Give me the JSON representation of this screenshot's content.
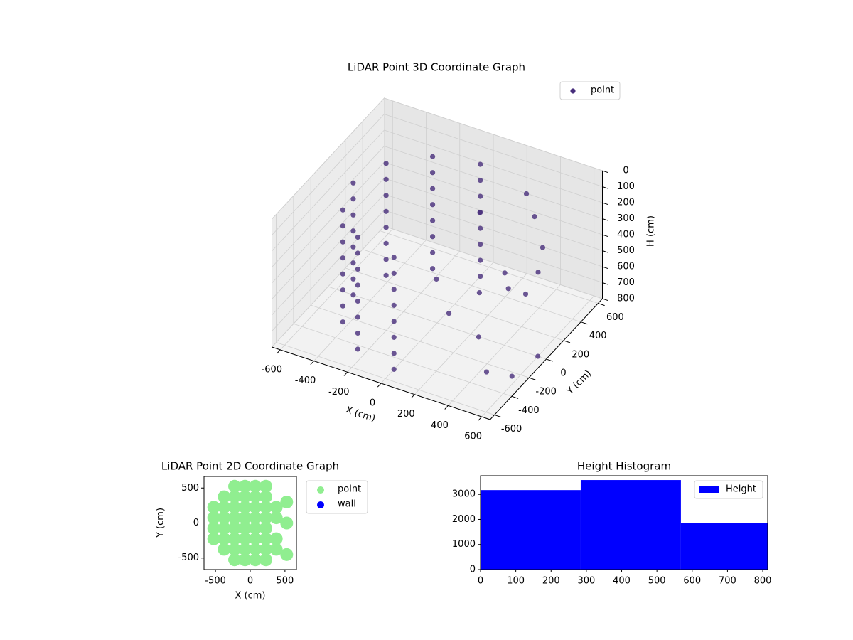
{
  "chart_data": [
    {
      "type": "scatter3d",
      "title": "LiDAR Point 3D Coordinate Graph",
      "xlabel": "X (cm)",
      "ylabel": "Y (cm)",
      "zlabel": "H (cm)",
      "xlim": [
        -650,
        650
      ],
      "ylim": [
        -650,
        650
      ],
      "zlim": [
        0,
        800
      ],
      "z_inverted": true,
      "xticks": [
        -600,
        -400,
        -200,
        0,
        200,
        400,
        600
      ],
      "yticks": [
        -600,
        -400,
        -200,
        0,
        200,
        400,
        600
      ],
      "zticks": [
        0,
        100,
        200,
        300,
        400,
        500,
        600,
        700,
        800
      ],
      "grid": true,
      "legend": "upper right",
      "series": [
        {
          "name": "point",
          "color": "#472d7b",
          "x": [
            0,
            0,
            0,
            0,
            0,
            0,
            0,
            0,
            -250,
            -250,
            -250,
            -250,
            -250,
            -250,
            -250,
            -250,
            -433,
            -433,
            -433,
            -433,
            -433,
            -433,
            -433,
            -433,
            -500,
            -500,
            -500,
            -500,
            -500,
            -500,
            -500,
            -500,
            -433,
            -433,
            -433,
            -433,
            -433,
            -433,
            -433,
            -433,
            -250,
            -250,
            -250,
            -250,
            -250,
            -250,
            -250,
            -250,
            0,
            0,
            0,
            0,
            0,
            0,
            0,
            0,
            300,
            400,
            500,
            550,
            450,
            300,
            200,
            350,
            500,
            600,
            150,
            250,
            100,
            450,
            600
          ],
          "y": [
            500,
            500,
            500,
            500,
            500,
            500,
            500,
            500,
            433,
            433,
            433,
            433,
            433,
            433,
            433,
            433,
            250,
            250,
            250,
            250,
            250,
            250,
            250,
            250,
            0,
            0,
            0,
            0,
            0,
            0,
            0,
            0,
            -250,
            -250,
            -250,
            -250,
            -250,
            -250,
            -250,
            -250,
            -433,
            -433,
            -433,
            -433,
            -433,
            -433,
            -433,
            -433,
            -500,
            -500,
            -500,
            -500,
            -500,
            -500,
            -500,
            -500,
            450,
            350,
            250,
            100,
            -50,
            200,
            100,
            -200,
            -400,
            -300,
            -300,
            -350,
            300,
            150,
            0
          ],
          "z": [
            100,
            200,
            300,
            400,
            500,
            600,
            700,
            800,
            100,
            200,
            300,
            400,
            500,
            600,
            700,
            800,
            100,
            200,
            300,
            400,
            500,
            600,
            700,
            800,
            100,
            200,
            300,
            400,
            500,
            600,
            700,
            800,
            100,
            200,
            300,
            400,
            500,
            600,
            700,
            800,
            100,
            200,
            300,
            400,
            500,
            600,
            700,
            800,
            100,
            200,
            300,
            400,
            500,
            600,
            700,
            800,
            150,
            200,
            300,
            350,
            400,
            500,
            600,
            650,
            700,
            750,
            300,
            450,
            250,
            550,
            800
          ]
        }
      ]
    },
    {
      "type": "scatter",
      "title": "LiDAR Point 2D Coordinate Graph",
      "xlabel": "X (cm)",
      "ylabel": "Y (cm)",
      "xlim": [
        -665,
        665
      ],
      "ylim": [
        -665,
        665
      ],
      "xticks": [
        -500,
        0,
        500
      ],
      "yticks": [
        -500,
        0,
        500
      ],
      "legend": "outside right",
      "series": [
        {
          "name": "point",
          "color": "#90ee90",
          "x": [
            -525,
            -525,
            -525,
            -525,
            -375,
            -375,
            -375,
            -375,
            -375,
            -375,
            -225,
            -225,
            -225,
            -225,
            -225,
            -225,
            -225,
            -225,
            -75,
            -75,
            -75,
            -75,
            -75,
            -75,
            -75,
            -75,
            75,
            75,
            75,
            75,
            75,
            75,
            75,
            75,
            225,
            225,
            225,
            225,
            225,
            225,
            225,
            225,
            375,
            375,
            375,
            375,
            525,
            525,
            525
          ],
          "y": [
            -225,
            -75,
            75,
            225,
            -375,
            -225,
            -75,
            75,
            225,
            375,
            -525,
            -375,
            -225,
            -75,
            75,
            225,
            375,
            525,
            -525,
            -375,
            -225,
            -75,
            75,
            225,
            375,
            525,
            -525,
            -375,
            -225,
            -75,
            75,
            225,
            375,
            525,
            -525,
            -375,
            -225,
            -75,
            75,
            225,
            375,
            525,
            -375,
            -225,
            75,
            225,
            -450,
            0,
            300
          ]
        },
        {
          "name": "wall",
          "color": "#0000ff",
          "x": [],
          "y": []
        }
      ]
    },
    {
      "type": "histogram",
      "title": "Height Histogram",
      "bins": [
        0,
        284,
        568,
        814
      ],
      "counts": [
        3171,
        3571,
        1857
      ],
      "xlim": [
        0,
        814
      ],
      "ylim": [
        0,
        3743
      ],
      "xticks": [
        0,
        100,
        200,
        300,
        400,
        500,
        600,
        700,
        800
      ],
      "yticks": [
        0,
        1000,
        2000,
        3000
      ],
      "series_name": "Height",
      "color": "#0000ff",
      "legend": "upper right"
    }
  ]
}
